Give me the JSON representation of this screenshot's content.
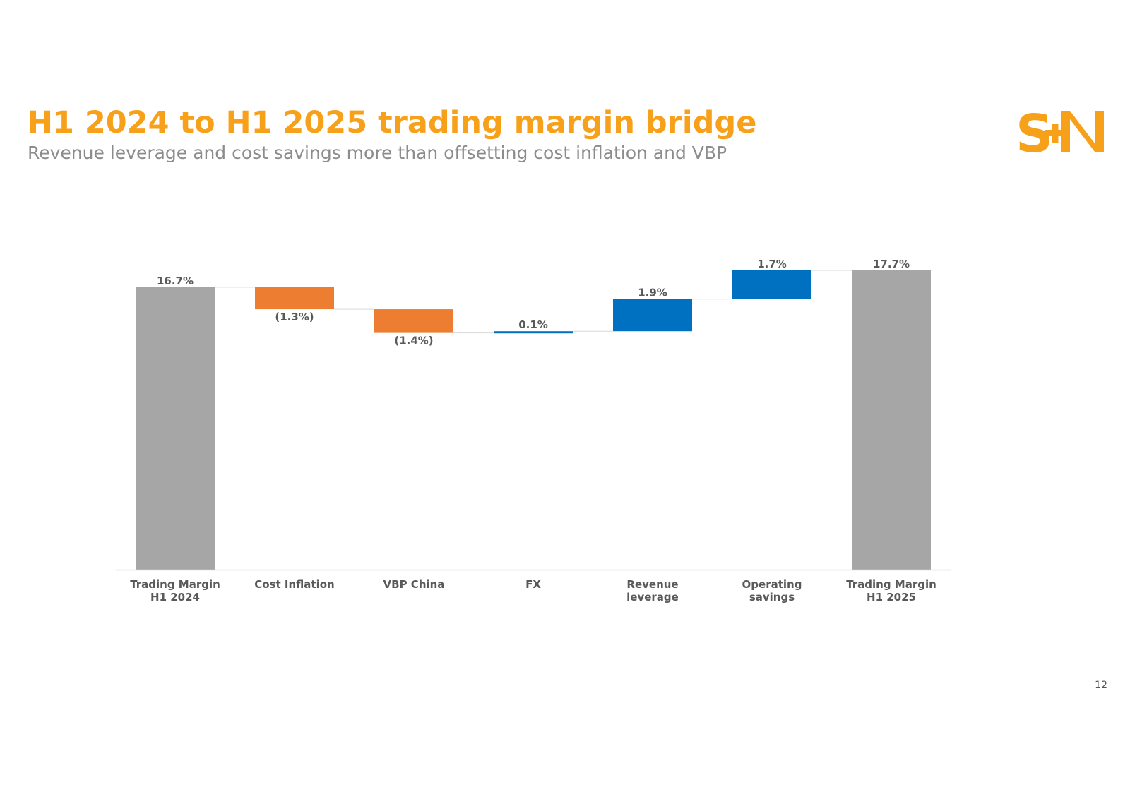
{
  "slide": {
    "title": "H1 2024 to H1 2025 trading margin bridge",
    "subtitle": "Revenue leverage and cost savings more than offsetting cost inflation and VBP",
    "page_number": "12",
    "logo": {
      "text": "S+N",
      "color": "#F7A11A"
    }
  },
  "colors": {
    "title": "#F7A11A",
    "subtitle": "#8c8c8c",
    "total": "#A6A6A6",
    "decrease": "#ED7D31",
    "increase": "#0070C0",
    "label": "#595959"
  },
  "chart_data": {
    "type": "waterfall",
    "title": "",
    "xlabel": "",
    "ylabel": "",
    "ylim": [
      0,
      18.2
    ],
    "grid": false,
    "legend": "none",
    "unit": "%",
    "categories": [
      [
        "Trading Margin",
        "H1 2024"
      ],
      [
        "Cost Inflation"
      ],
      [
        "VBP China"
      ],
      [
        "FX"
      ],
      [
        "Revenue",
        "leverage"
      ],
      [
        "Operating",
        "savings"
      ],
      [
        "Trading Margin",
        "H1 2025"
      ]
    ],
    "steps": [
      {
        "kind": "total",
        "value": 16.7,
        "label": "16.7%"
      },
      {
        "kind": "delta",
        "value": -1.3,
        "label": "(1.3%)"
      },
      {
        "kind": "delta",
        "value": -1.4,
        "label": "(1.4%)"
      },
      {
        "kind": "delta",
        "value": 0.1,
        "label": "0.1%"
      },
      {
        "kind": "delta",
        "value": 1.9,
        "label": "1.9%"
      },
      {
        "kind": "delta",
        "value": 1.7,
        "label": "1.7%"
      },
      {
        "kind": "total",
        "value": 17.7,
        "label": "17.7%"
      }
    ]
  }
}
